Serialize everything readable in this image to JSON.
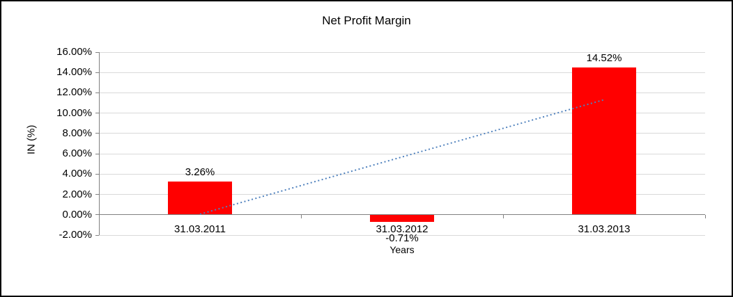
{
  "chart_data": {
    "type": "bar",
    "title": "Net Profit Margin",
    "categories": [
      "31.03.2011",
      "31.03.2012",
      "31.03.2013"
    ],
    "values": [
      3.26,
      -0.71,
      14.52
    ],
    "data_labels": [
      "3.26%",
      "-0.71%",
      "14.52%"
    ],
    "xlabel": "Years",
    "ylabel": "IN (%)",
    "ylim": [
      -2,
      16
    ],
    "ytick_step": 2,
    "ytick_decimals": 2,
    "ytick_suffix": "%",
    "grid": true,
    "legend": "none",
    "bar_color": "#FF0000",
    "grid_color": "#D9D9D9",
    "axis_color": "#808080",
    "label_color": "#000000",
    "trendline": {
      "type": "linear",
      "style": "dotted",
      "color": "#4F81BD",
      "start_value": 0.06,
      "end_value": 11.32
    }
  }
}
